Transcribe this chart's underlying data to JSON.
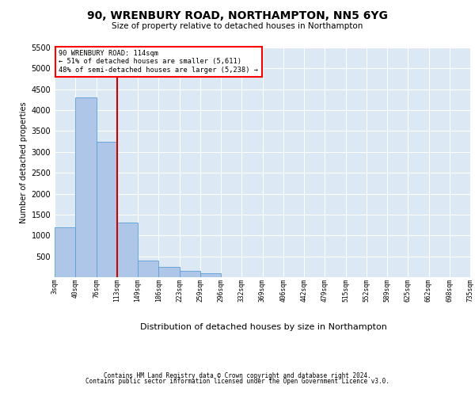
{
  "title1": "90, WRENBURY ROAD, NORTHAMPTON, NN5 6YG",
  "title2": "Size of property relative to detached houses in Northampton",
  "xlabel": "Distribution of detached houses by size in Northampton",
  "ylabel": "Number of detached properties",
  "annotation_line1": "90 WRENBURY ROAD: 114sqm",
  "annotation_line2": "← 51% of detached houses are smaller (5,611)",
  "annotation_line3": "48% of semi-detached houses are larger (5,238) →",
  "footer1": "Contains HM Land Registry data © Crown copyright and database right 2024.",
  "footer2": "Contains public sector information licensed under the Open Government Licence v3.0.",
  "bar_color": "#aec6e8",
  "bar_edge_color": "#5a9fd4",
  "red_line_color": "#cc0000",
  "background_color": "#dce9f5",
  "bar_heights": [
    1200,
    4300,
    3250,
    1300,
    400,
    250,
    150,
    100,
    0,
    0,
    0,
    0,
    0,
    0,
    0,
    0,
    0,
    0,
    0,
    0
  ],
  "x_labels": [
    "3sqm",
    "40sqm",
    "76sqm",
    "113sqm",
    "149sqm",
    "186sqm",
    "223sqm",
    "259sqm",
    "296sqm",
    "332sqm",
    "369sqm",
    "406sqm",
    "442sqm",
    "479sqm",
    "515sqm",
    "552sqm",
    "589sqm",
    "625sqm",
    "662sqm",
    "698sqm",
    "735sqm"
  ],
  "ylim": [
    0,
    5500
  ],
  "yticks": [
    500,
    1000,
    1500,
    2000,
    2500,
    3000,
    3500,
    4000,
    4500,
    5000,
    5500
  ],
  "red_line_x": 3,
  "n_bars": 20
}
